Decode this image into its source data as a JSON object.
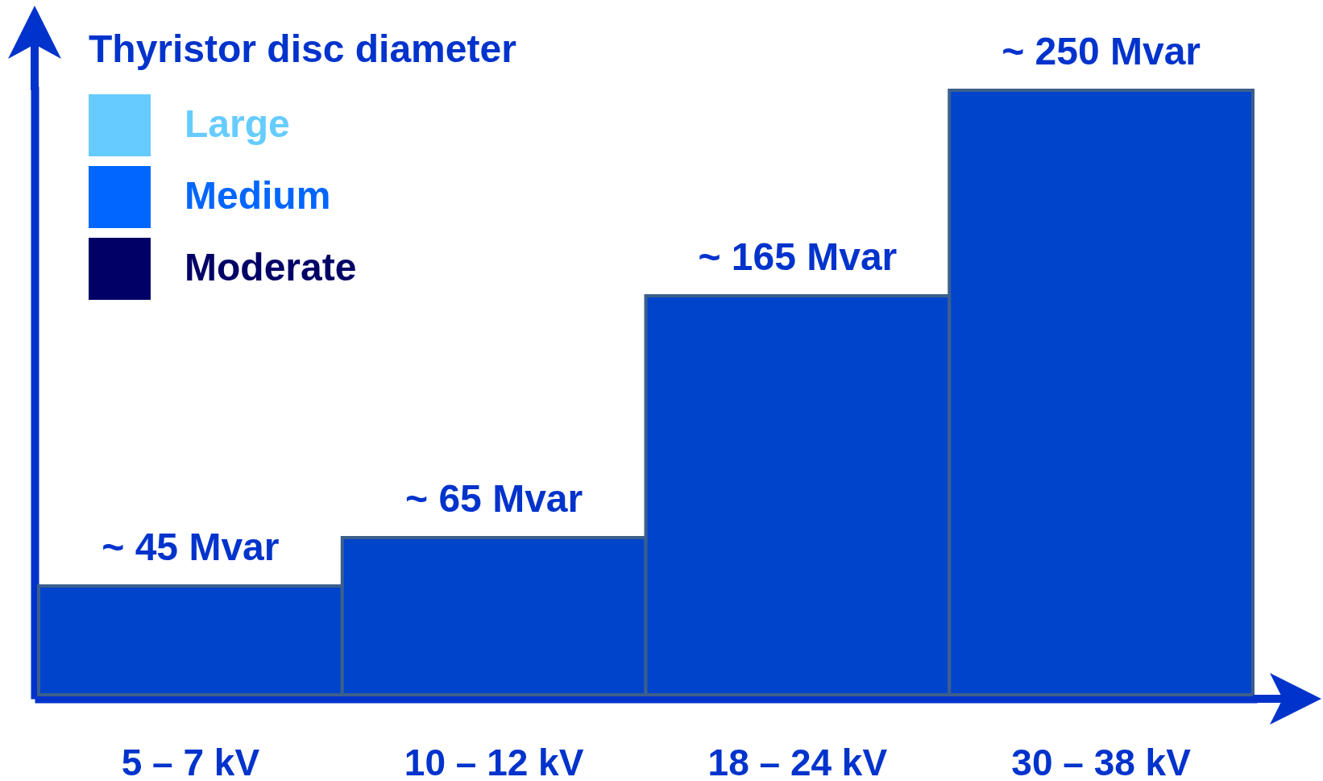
{
  "chart_data": {
    "type": "bar",
    "categories": [
      "5 – 7 kV",
      "10 – 12 kV",
      "18 – 24 kV",
      "30 – 38 kV"
    ],
    "series": [
      {
        "color": "#0044cc",
        "values": [
          45,
          65,
          165,
          250
        ],
        "value_labels": [
          "~ 45 Mvar",
          "~ 65 Mvar",
          "~ 165 Mvar",
          "~ 250 Mvar"
        ]
      },
      {
        "name": "Large",
        "color": "#66ccff",
        "values": [
          null,
          null,
          null,
          null
        ]
      },
      {
        "name": "Medium",
        "color": "#0066ff",
        "values": [
          null,
          null,
          null,
          null
        ]
      },
      {
        "name": "Moderate",
        "color": "#000066",
        "values": [
          null,
          null,
          null,
          null
        ]
      }
    ],
    "legend_title": "Thyristor disc diameter",
    "legend": "top left"
  }
}
